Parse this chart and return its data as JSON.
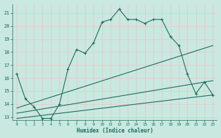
{
  "xlabel": "Humidex (Indice chaleur)",
  "background_color": "#c8e8e0",
  "grid_color": "#e8c8c8",
  "line_color": "#1a6b5a",
  "xlim": [
    -0.5,
    23.5
  ],
  "ylim": [
    12.8,
    21.7
  ],
  "yticks": [
    13,
    14,
    15,
    16,
    17,
    18,
    19,
    20,
    21
  ],
  "xticks": [
    0,
    1,
    2,
    3,
    4,
    5,
    6,
    7,
    8,
    9,
    10,
    11,
    12,
    13,
    14,
    15,
    16,
    17,
    18,
    19,
    20,
    21,
    22,
    23
  ],
  "series1_x": [
    0,
    1,
    2,
    3,
    4,
    5,
    6,
    7,
    8,
    9,
    10,
    11,
    12,
    13,
    14,
    15,
    16,
    17,
    18,
    19,
    20,
    21,
    22,
    23
  ],
  "series1_y": [
    16.3,
    14.4,
    13.8,
    12.9,
    12.9,
    14.0,
    16.7,
    18.2,
    17.9,
    18.7,
    20.3,
    20.5,
    21.3,
    20.5,
    20.5,
    20.2,
    20.5,
    20.5,
    19.2,
    18.5,
    16.3,
    14.8,
    15.7,
    14.7
  ],
  "series2_x": [
    0,
    23
  ],
  "series2_y": [
    13.7,
    18.5
  ],
  "series3_x": [
    0,
    23
  ],
  "series3_y": [
    13.3,
    15.8
  ],
  "series4_x": [
    0,
    23
  ],
  "series4_y": [
    12.9,
    14.7
  ]
}
